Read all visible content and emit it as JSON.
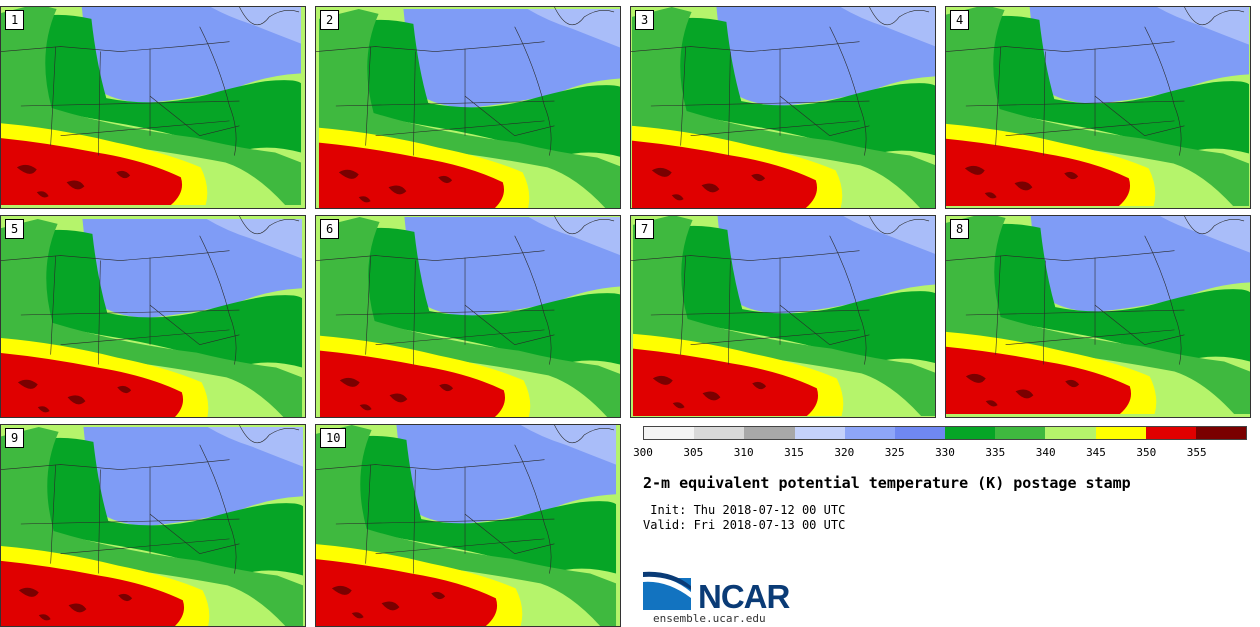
{
  "colors": {
    "frame": "#333333",
    "states": "#2a2a2a",
    "land_low": "#b5f46b",
    "band_levels": [
      "#7f9cf6",
      "#a9bdf9",
      "#06a526",
      "#3fb93f",
      "#b5f46b",
      "#ffff00",
      "#e00000",
      "#7a0000"
    ]
  },
  "panels": [
    {
      "number": "1"
    },
    {
      "number": "2"
    },
    {
      "number": "3"
    },
    {
      "number": "4"
    },
    {
      "number": "5"
    },
    {
      "number": "6"
    },
    {
      "number": "7"
    },
    {
      "number": "8"
    },
    {
      "number": "9"
    },
    {
      "number": "10"
    }
  ],
  "colorbar": {
    "colors": [
      "#f4f4f4",
      "#d9d9d9",
      "#a8a8a8",
      "#c5d2fb",
      "#8ea6f8",
      "#6f88f2",
      "#06a526",
      "#3fb93f",
      "#b5f46b",
      "#ffff00",
      "#e00000",
      "#7a0000"
    ],
    "labels": [
      "300",
      "305",
      "310",
      "315",
      "320",
      "325",
      "330",
      "335",
      "340",
      "345",
      "350",
      "355"
    ],
    "unit": "K"
  },
  "title": "2-m equivalent potential temperature (K) postage stamp",
  "init_text": " Init: Thu 2018-07-12 00 UTC",
  "valid_text": "Valid: Fri 2018-07-13 00 UTC",
  "logo": {
    "text": "NCAR",
    "url": "ensemble.ucar.edu"
  }
}
